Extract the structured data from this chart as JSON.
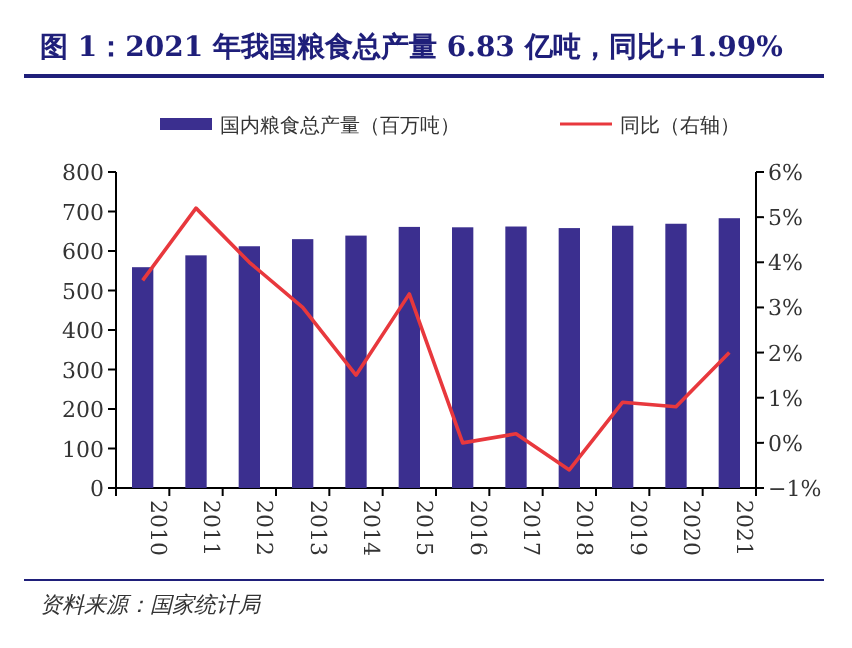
{
  "chart_data": {
    "type": "bar",
    "title": "图 1：2021 年我国粮食总产量 6.83 亿吨，同比+1.99%",
    "annotations": [
      "资料来源：国家统计局"
    ],
    "categories": [
      "2010",
      "2011",
      "2012",
      "2013",
      "2014",
      "2015",
      "2016",
      "2017",
      "2018",
      "2019",
      "2020",
      "2021"
    ],
    "series": [
      {
        "name": "国内粮食总产量（百万吨）",
        "color": "#3b2f8f",
        "values": [
          559,
          589,
          612,
          630,
          639,
          661,
          660,
          662,
          658,
          664,
          669,
          683
        ]
      },
      {
        "name": "同比（右轴）",
        "type": "line",
        "axis": "y2",
        "color": "#e8383d",
        "values": [
          3.6,
          5.2,
          4.0,
          3.0,
          1.5,
          3.3,
          0.0,
          0.2,
          -0.6,
          0.9,
          0.8,
          2.0
        ]
      }
    ],
    "ylim": [
      0,
      800
    ],
    "yticks": [
      0,
      100,
      200,
      300,
      400,
      500,
      600,
      700,
      800
    ],
    "y2lim": [
      -1,
      6
    ],
    "y2ticks": [
      {
        "value": -1,
        "label": "−1%"
      },
      {
        "value": 0,
        "label": "0%"
      },
      {
        "value": 1,
        "label": "1%"
      },
      {
        "value": 2,
        "label": "2%"
      },
      {
        "value": 3,
        "label": "3%"
      },
      {
        "value": 4,
        "label": "4%"
      },
      {
        "value": 5,
        "label": "5%"
      },
      {
        "value": 6,
        "label": "6%"
      }
    ],
    "legend": "top",
    "grid": false
  }
}
